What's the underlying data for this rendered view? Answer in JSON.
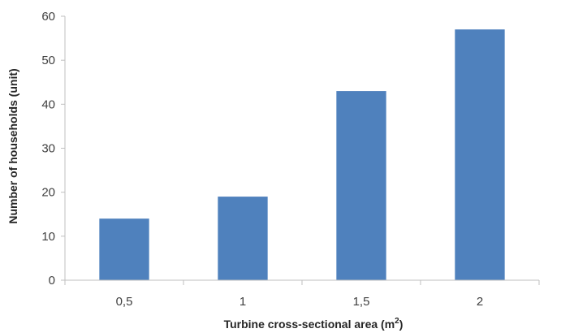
{
  "chart_data": {
    "type": "bar",
    "categories": [
      "0,5",
      "1",
      "1,5",
      "2"
    ],
    "values": [
      14,
      19,
      43,
      57
    ],
    "title": "",
    "xlabel": "Turbine cross-sectional area (m",
    "xlabel_superscript": "2",
    "xlabel_suffix": ")",
    "ylabel": "Number of households (unit)",
    "ylim": [
      0,
      60
    ],
    "yticks": [
      0,
      10,
      20,
      30,
      40,
      50,
      60
    ],
    "grid": false,
    "legend": "none",
    "bar_color": "#4F81BD",
    "axis_color": "#BFBFBF"
  }
}
